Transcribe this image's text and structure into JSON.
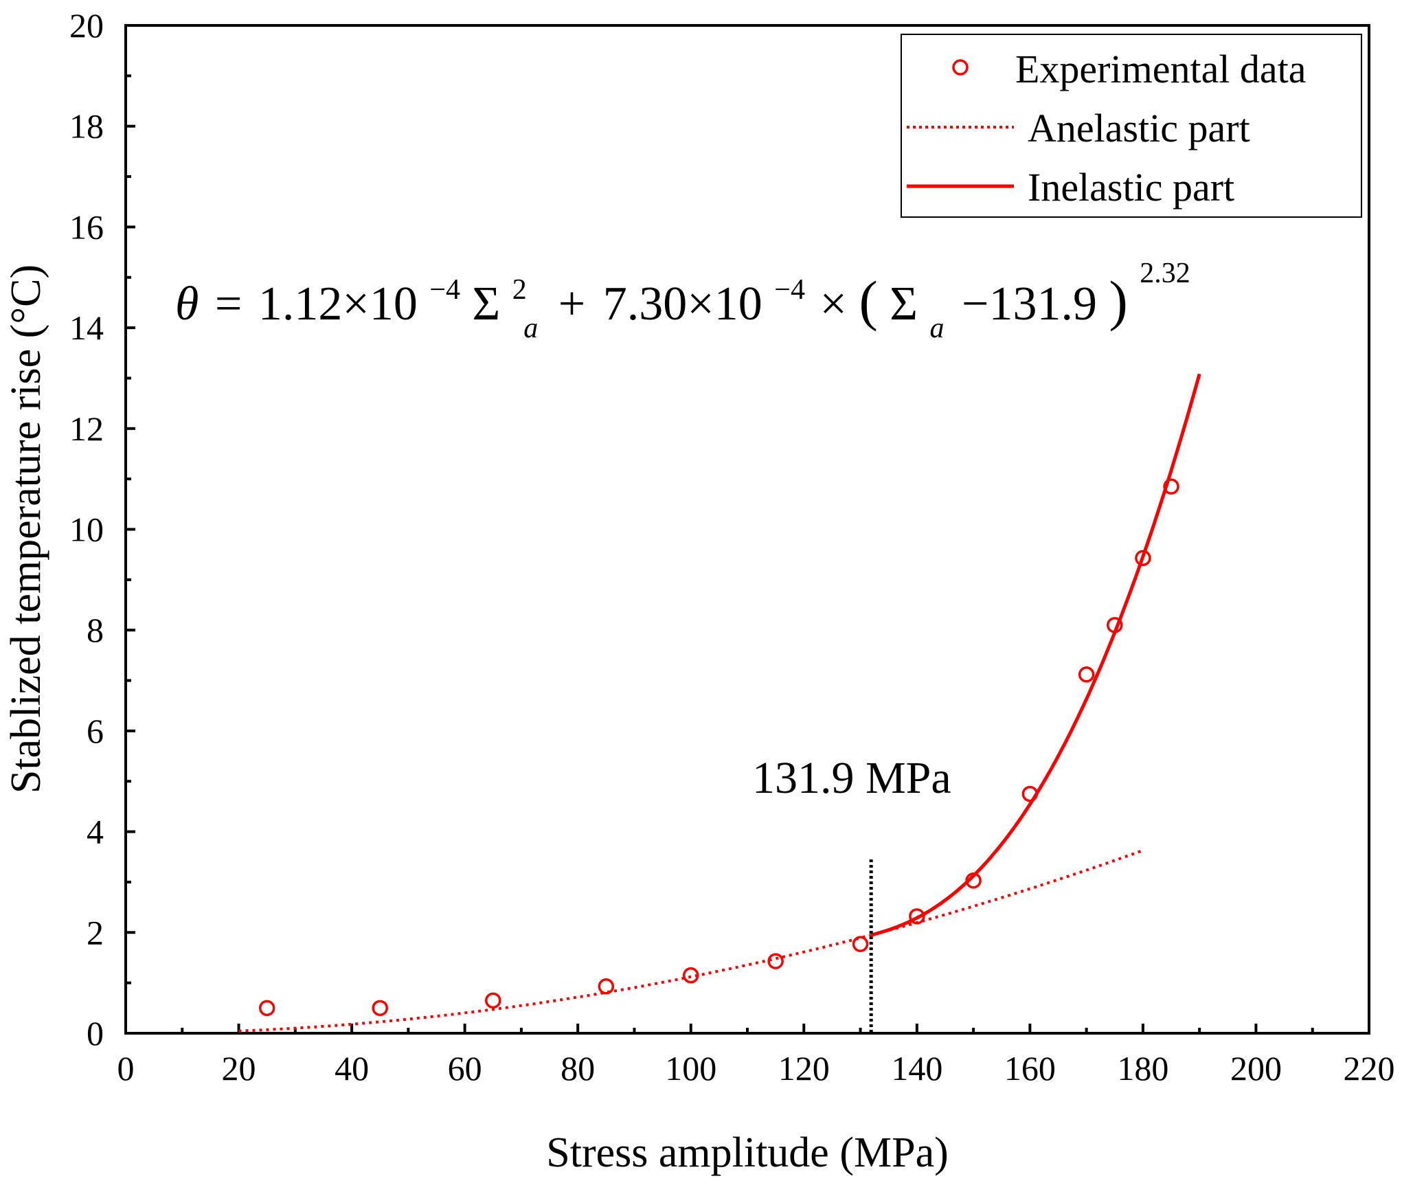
{
  "chart_data": {
    "type": "scatter",
    "title": "",
    "xlabel": "Stress amplitude (MPa)",
    "ylabel": "Stablized temperature rise (°C)",
    "xlim": [
      0,
      220
    ],
    "ylim": [
      0,
      20
    ],
    "xticks": [
      0,
      20,
      40,
      60,
      80,
      100,
      120,
      140,
      160,
      180,
      200,
      220
    ],
    "yticks": [
      0,
      2,
      4,
      6,
      8,
      10,
      12,
      14,
      16,
      18,
      20
    ],
    "grid": false,
    "legend_position": "top-right",
    "colors": {
      "series": "#ff0000",
      "axis": "#000000",
      "threshold_line": "#000000"
    },
    "series": [
      {
        "name": "Experimental data",
        "kind": "markers",
        "x": [
          25,
          45,
          65,
          85,
          100,
          115,
          130,
          140,
          150,
          160,
          170,
          175,
          180,
          185
        ],
        "y": [
          0.5,
          0.5,
          0.65,
          0.93,
          1.15,
          1.43,
          1.77,
          2.32,
          3.03,
          4.75,
          7.12,
          8.1,
          9.43,
          10.85
        ]
      },
      {
        "name": "Anelastic part",
        "kind": "dotted-line",
        "formula": "1.12e-4 * x^2",
        "coef": 0.000112,
        "power": 2,
        "x_range": [
          20,
          180
        ]
      },
      {
        "name": "Inelastic part",
        "kind": "solid-line",
        "formula": "1.12e-4 * x^2 + 7.30e-4 * (x - 131.9)^2.32",
        "coef_a": 0.000112,
        "coef_b": 0.00073,
        "threshold": 131.9,
        "exponent": 2.32,
        "x_range": [
          131.9,
          190
        ]
      }
    ],
    "threshold_x": 131.9,
    "threshold_line_ytop": 3.45,
    "annotations": {
      "threshold_label": "131.9 MPa",
      "equation": {
        "theta": "θ",
        "eq": "=",
        "c1": "1.12×10",
        "e1": "−4",
        "sigma1": "Σ",
        "sup1": "2",
        "sub1": "a",
        "plus": "+",
        "c2": "7.30×10",
        "e2": "−4",
        "times": "×",
        "lparen": "(",
        "sigma2": "Σ",
        "sub2": "a",
        "minus": "−131.9",
        "rparen": ")",
        "exp": "2.32"
      }
    }
  }
}
